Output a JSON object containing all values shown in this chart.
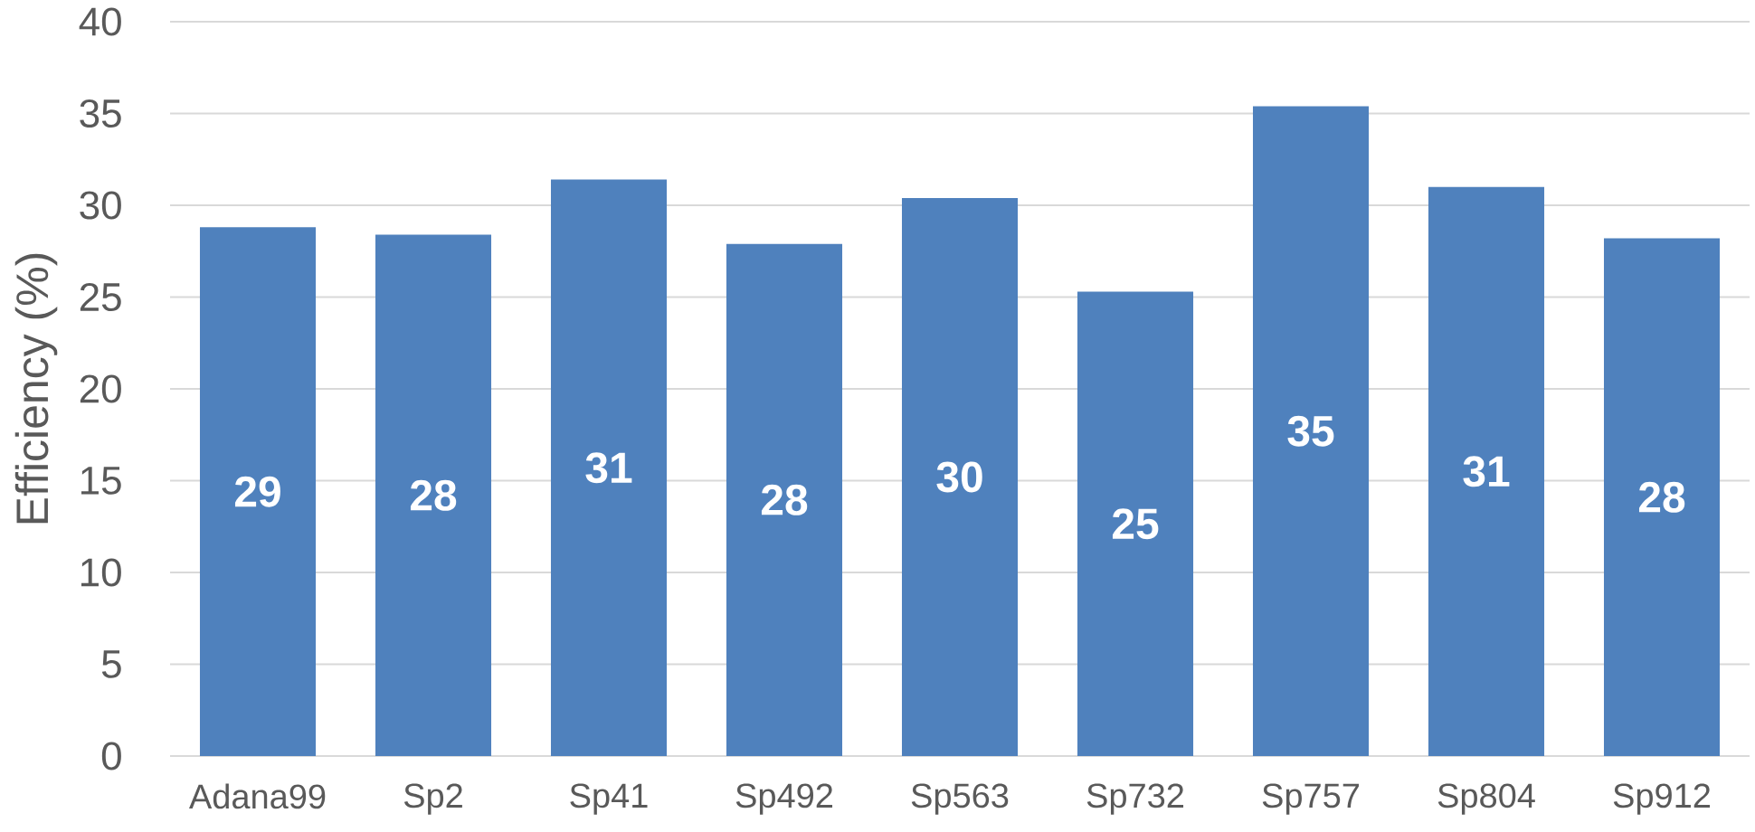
{
  "chart_data": {
    "type": "bar",
    "ylabel": "Efficiency (%)",
    "categories": [
      "Adana99",
      "Sp2",
      "Sp41",
      "Sp492",
      "Sp563",
      "Sp732",
      "Sp757",
      "Sp804",
      "Sp912"
    ],
    "values": [
      28.8,
      28.4,
      31.4,
      27.9,
      30.4,
      25.3,
      35.4,
      31.0,
      28.2
    ],
    "value_labels": [
      "29",
      "28",
      "31",
      "28",
      "30",
      "25",
      "35",
      "31",
      "28"
    ],
    "color": "#4f81bd",
    "ylim": [
      0,
      40
    ],
    "yticks": [
      0,
      5,
      10,
      15,
      20,
      25,
      30,
      35,
      40
    ],
    "grid": "y"
  }
}
